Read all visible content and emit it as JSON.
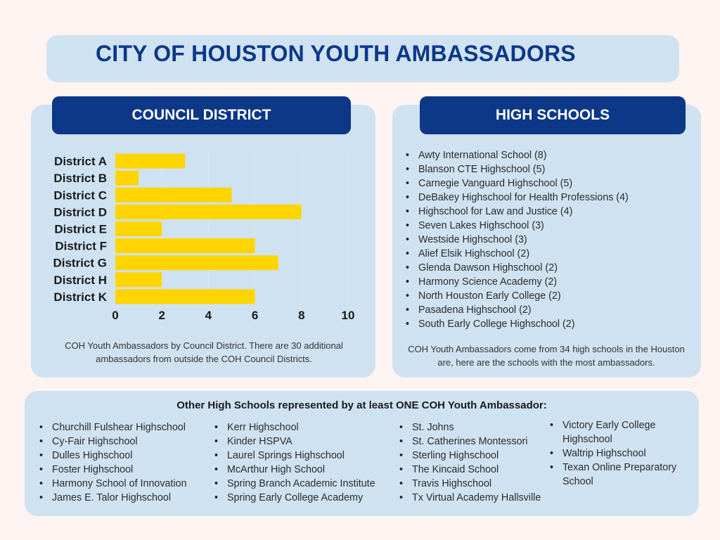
{
  "title": "CITY OF HOUSTON YOUTH AMBASSADORS",
  "district_section": {
    "header": "COUNCIL DISTRICT",
    "caption": "COH Youth Ambassadors by Council District. There are 30 additional ambassadors from outside the COH Council Districts."
  },
  "chart_data": {
    "type": "bar",
    "orientation": "horizontal",
    "title": "",
    "xlabel": "",
    "ylabel": "",
    "categories": [
      "District A",
      "District B",
      "District C",
      "District D",
      "District E",
      "District F",
      "District G",
      "District H",
      "District K"
    ],
    "values": [
      3,
      1,
      5,
      8,
      2,
      6,
      7,
      2,
      6
    ],
    "xlim": [
      0,
      10
    ],
    "xticks": [
      "0",
      "2",
      "4",
      "6",
      "8",
      "10"
    ],
    "grid": true,
    "bar_color": "#ffd500",
    "grid_color": "#e0e6ea"
  },
  "schools_section": {
    "header": "HIGH SCHOOLS",
    "items": [
      "Awty International School (8)",
      "Blanson CTE Highschool (5)",
      "Carnegie Vanguard Highschool (5)",
      "DeBakey Highschool for Health Professions (4)",
      "Highschool for Law and Justice (4)",
      "Seven Lakes Highschool (3)",
      "Westside Highschool (3)",
      "Alief Elsik Highschool (2)",
      "Glenda Dawson Highschool (2)",
      "Harmony Science Academy (2)",
      "North Houston Early College (2)",
      "Pasadena Highschool (2)",
      "South Early College Highschool (2)"
    ],
    "caption": "COH Youth Ambassadors come from 34 high schools in the Houston are, here are the schools with the most ambassadors."
  },
  "other_section": {
    "title": "Other High Schools represented by at least ONE COH Youth Ambassador:",
    "columns": [
      [
        "Churchill Fulshear Highschool",
        "Cy-Fair Highschool",
        "Dulles Highschool",
        "Foster Highschool",
        "Harmony School of Innovation",
        "James E. Talor Highschool"
      ],
      [
        "Kerr Highschool",
        "Kinder HSPVA",
        "Laurel Springs Highschool",
        "McArthur High School",
        "Spring Branch Academic Institute",
        "Spring Early College Academy"
      ],
      [
        "St. Johns",
        "St. Catherines Montessori",
        "Sterling Highschool",
        "The Kincaid School",
        "Travis Highschool",
        "Tx Virtual Academy Hallsville"
      ],
      [
        "Victory Early College Highschool",
        "Waltrip Highschool",
        "Texan Online Preparatory School"
      ]
    ]
  },
  "colors": {
    "background": "#fdf3f1",
    "panel": "#cfe2f1",
    "accent_navy": "#0d3787",
    "title_text": "#0d3787"
  }
}
